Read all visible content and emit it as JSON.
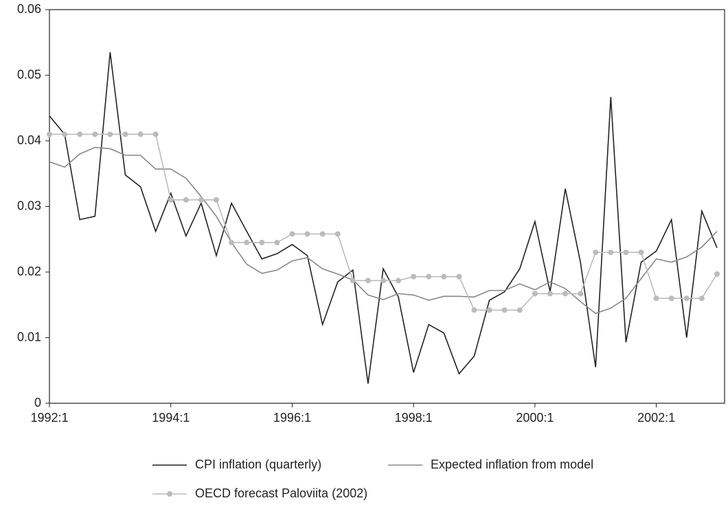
{
  "chart_data": {
    "type": "line",
    "categories": [
      "1992:1",
      null,
      null,
      null,
      null,
      null,
      null,
      null,
      "1994:1",
      null,
      null,
      null,
      null,
      null,
      null,
      null,
      "1996:1",
      null,
      null,
      null,
      null,
      null,
      null,
      null,
      "1998:1",
      null,
      null,
      null,
      null,
      null,
      null,
      null,
      "2000:1",
      null,
      null,
      null,
      null,
      null,
      null,
      null,
      "2002:1",
      null,
      null,
      null,
      null
    ],
    "series": [
      {
        "name": "CPI inflation (quarterly)",
        "color": "#222222",
        "marker": false,
        "values": [
          0.0438,
          0.041,
          0.028,
          0.0285,
          0.0535,
          0.0348,
          0.033,
          0.0262,
          0.032,
          0.0255,
          0.0305,
          0.0225,
          0.0305,
          0.0262,
          0.022,
          0.0228,
          0.0242,
          0.0225,
          0.012,
          0.0185,
          0.0203,
          0.003,
          0.0205,
          0.0162,
          0.0047,
          0.012,
          0.0107,
          0.0045,
          0.0072,
          0.0157,
          0.017,
          0.0205,
          0.0277,
          0.017,
          0.0327,
          0.0215,
          0.0055,
          0.0467,
          0.0093,
          0.0215,
          0.0232,
          0.028,
          0.01,
          0.0293,
          0.0237
        ]
      },
      {
        "name": "Expected inflation from model",
        "color": "#888888",
        "marker": false,
        "values": [
          0.0368,
          0.036,
          0.038,
          0.039,
          0.0388,
          0.0378,
          0.0378,
          0.0357,
          0.0357,
          0.0343,
          0.0315,
          0.0285,
          0.0245,
          0.0212,
          0.0198,
          0.0203,
          0.0217,
          0.0222,
          0.0205,
          0.0197,
          0.0188,
          0.0165,
          0.0158,
          0.0167,
          0.0165,
          0.0157,
          0.0163,
          0.0163,
          0.0162,
          0.0172,
          0.0172,
          0.0182,
          0.0173,
          0.0185,
          0.0175,
          0.0155,
          0.0137,
          0.0145,
          0.016,
          0.019,
          0.022,
          0.0215,
          0.0223,
          0.0238,
          0.0262
        ]
      },
      {
        "name": "OECD forecast Paloviita (2002)",
        "color": "#bbbbbb",
        "marker": true,
        "values": [
          0.041,
          0.041,
          0.041,
          0.041,
          0.041,
          0.041,
          0.041,
          0.041,
          0.031,
          0.031,
          0.031,
          0.031,
          0.0245,
          0.0245,
          0.0245,
          0.0245,
          0.0258,
          0.0258,
          0.0258,
          0.0258,
          0.0187,
          0.0187,
          0.0187,
          0.0187,
          0.0193,
          0.0193,
          0.0193,
          0.0193,
          0.0142,
          0.0142,
          0.0142,
          0.0142,
          0.0167,
          0.0167,
          0.0167,
          0.0167,
          0.023,
          0.023,
          0.023,
          0.023,
          0.016,
          0.016,
          0.016,
          0.016,
          0.0197
        ]
      }
    ],
    "ylim": [
      0,
      0.06
    ],
    "yticks": [
      0,
      0.01,
      0.02,
      0.03,
      0.04,
      0.05,
      0.06
    ]
  }
}
